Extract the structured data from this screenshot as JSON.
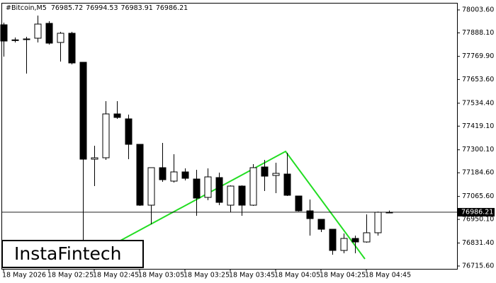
{
  "chart_data": {
    "type": "candlestick",
    "title": "#Bitcoin,M5",
    "watermark": "InstaFintech",
    "categories": [
      "18 May 2026",
      null,
      null,
      null,
      "18 May 02:25",
      null,
      null,
      null,
      "18 May 02:45",
      null,
      null,
      null,
      "18 May 03:05",
      null,
      null,
      null,
      "18 May 03:25",
      null,
      null,
      null,
      "18 May 03:45",
      null,
      null,
      null,
      "18 May 04:05",
      null,
      null,
      null,
      "18 May 04:25",
      null,
      null,
      null,
      "18 May 04:45",
      null,
      null
    ],
    "open": [
      77928.9,
      77850.6,
      77857.7,
      77861.3,
      77936.0,
      77839.9,
      77886.2,
      77740.3,
      77252.9,
      77260.0,
      77480.6,
      77455.7,
      77327.6,
      77021.6,
      77210.2,
      77142.6,
      77188.9,
      77153.2,
      77060.7,
      77160.4,
      77021.6,
      77117.7,
      77021.6,
      77213.8,
      77171.0,
      77178.2,
      77067.8,
      76993.1,
      76950.5,
      76900.6,
      76794.0,
      76854.4,
      76836.6,
      76882.9,
      76985.72
    ],
    "high": [
      77939.6,
      77864.8,
      77868.4,
      77975.1,
      77946.7,
      77893.3,
      77893.3,
      77740.3,
      77320.5,
      77544.6,
      77544.6,
      77477.0,
      77327.6,
      77210.2,
      77334.7,
      77277.8,
      77206.6,
      77199.5,
      77206.6,
      77185.3,
      77121.2,
      77121.2,
      77228.0,
      77249.3,
      77235.1,
      77284.9,
      77067.8,
      77050.0,
      76950.5,
      76900.6,
      76879.3,
      76868.6,
      76975.4,
      76989.6,
      76994.53
    ],
    "low": [
      77768.8,
      77839.9,
      77683.4,
      77839.9,
      77829.3,
      77743.9,
      77729.6,
      76708.6,
      77117.7,
      77249.3,
      77455.7,
      77252.9,
      77018.0,
      76925.6,
      77139.0,
      77135.4,
      77146.1,
      76968.3,
      77046.5,
      77021.6,
      76986.1,
      76968.3,
      77018.0,
      77092.7,
      77082.1,
      77067.8,
      76989.6,
      76868.6,
      76886.4,
      76772.6,
      76779.8,
      76779.8,
      76833.1,
      76868.6,
      76983.91
    ],
    "close": [
      77847.0,
      77853.0,
      77854.2,
      77932.4,
      77836.4,
      77886.2,
      77736.8,
      77252.9,
      77260.0,
      77480.6,
      77462.8,
      77327.6,
      77021.6,
      77210.2,
      77149.7,
      77188.9,
      77156.8,
      77057.2,
      77163.9,
      77035.8,
      77117.7,
      77021.6,
      77210.2,
      77167.5,
      77181.7,
      77071.4,
      76993.1,
      76954.0,
      76900.6,
      76794.0,
      76854.4,
      76836.6,
      76882.9,
      76986.1,
      76986.21
    ],
    "up_color": "#ffffff",
    "down_color": "#000000",
    "ylim": [
      76701.4,
      78039.2
    ],
    "yticks": [
      {
        "value": 78003.6,
        "label": "78003.60"
      },
      {
        "value": 77888.1,
        "label": "77888.10"
      },
      {
        "value": 77769.9,
        "label": "77769.90"
      },
      {
        "value": 77653.6,
        "label": "77653.60"
      },
      {
        "value": 77534.4,
        "label": "77534.40"
      },
      {
        "value": 77419.1,
        "label": "77419.10"
      },
      {
        "value": 77300.1,
        "label": "77300.10"
      },
      {
        "value": 77184.6,
        "label": "77184.60"
      },
      {
        "value": 77065.6,
        "label": "77065.60"
      },
      {
        "value": 76950.1,
        "label": "76950.10"
      },
      {
        "value": 76831.4,
        "label": "76831.40"
      },
      {
        "value": 76715.6,
        "label": "76715.60"
      }
    ],
    "grid": false
  }
}
